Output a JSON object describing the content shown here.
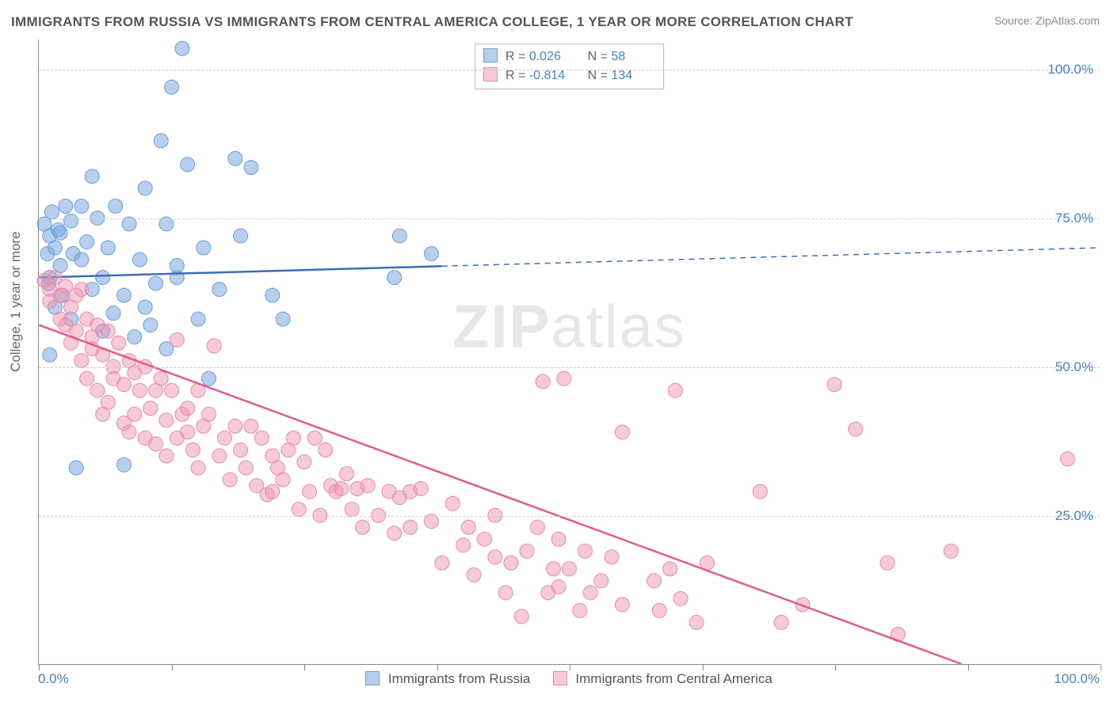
{
  "title": "IMMIGRANTS FROM RUSSIA VS IMMIGRANTS FROM CENTRAL AMERICA COLLEGE, 1 YEAR OR MORE CORRELATION CHART",
  "source": "Source: ZipAtlas.com",
  "y_label": "College, 1 year or more",
  "watermark_a": "ZIP",
  "watermark_b": "atlas",
  "chart": {
    "type": "scatter",
    "xlim": [
      0,
      100
    ],
    "ylim": [
      0,
      105
    ],
    "y_ticks": [
      25,
      50,
      75,
      100
    ],
    "y_tick_labels": [
      "25.0%",
      "50.0%",
      "75.0%",
      "100.0%"
    ],
    "x_ticks": [
      0,
      12.5,
      25,
      37.5,
      50,
      62.5,
      75,
      87.5,
      100
    ],
    "x_left_label": "0.0%",
    "x_right_label": "100.0%",
    "grid_color": "#cccccc",
    "axis_color": "#888888",
    "background_color": "#ffffff",
    "series": [
      {
        "name": "Immigrants from Russia",
        "color_fill": "rgba(123,168,222,0.55)",
        "color_stroke": "#6b9ed9",
        "line_color": "#3b6fb5",
        "marker_radius": 9,
        "R_label": "R = ",
        "R": "0.026",
        "N_label": "N = ",
        "N": "58",
        "trend": {
          "x1": 0,
          "y1": 65,
          "x2": 100,
          "y2": 70,
          "solid_until_x": 38
        },
        "points": [
          [
            0.5,
            74
          ],
          [
            0.8,
            69
          ],
          [
            0.9,
            64
          ],
          [
            1,
            72
          ],
          [
            1,
            65
          ],
          [
            1.2,
            76
          ],
          [
            1.5,
            70
          ],
          [
            1.8,
            73
          ],
          [
            2,
            72.5
          ],
          [
            1,
            52
          ],
          [
            1.5,
            60
          ],
          [
            2,
            67
          ],
          [
            2.5,
            77
          ],
          [
            2.2,
            62
          ],
          [
            3,
            74.5
          ],
          [
            3,
            58
          ],
          [
            3.2,
            69
          ],
          [
            3.5,
            33
          ],
          [
            4,
            68
          ],
          [
            4,
            77
          ],
          [
            4.5,
            71
          ],
          [
            5,
            82
          ],
          [
            5,
            63
          ],
          [
            5.5,
            75
          ],
          [
            6,
            56
          ],
          [
            6,
            65
          ],
          [
            6.5,
            70
          ],
          [
            7,
            59
          ],
          [
            7.2,
            77
          ],
          [
            8,
            62
          ],
          [
            8,
            33.5
          ],
          [
            8.5,
            74
          ],
          [
            9,
            55
          ],
          [
            9.5,
            68
          ],
          [
            10,
            80
          ],
          [
            10,
            60
          ],
          [
            10.5,
            57
          ],
          [
            11,
            64
          ],
          [
            11.5,
            88
          ],
          [
            12,
            53
          ],
          [
            12,
            74
          ],
          [
            12.5,
            97
          ],
          [
            13,
            65
          ],
          [
            13,
            67
          ],
          [
            13.5,
            103.5
          ],
          [
            14,
            84
          ],
          [
            15,
            58
          ],
          [
            15.5,
            70
          ],
          [
            16,
            48
          ],
          [
            17,
            63
          ],
          [
            18.5,
            85
          ],
          [
            19,
            72
          ],
          [
            20,
            83.5
          ],
          [
            22,
            62
          ],
          [
            23,
            58
          ],
          [
            33.5,
            65
          ],
          [
            34,
            72
          ],
          [
            37,
            69
          ]
        ]
      },
      {
        "name": "Immigrants from Central America",
        "color_fill": "rgba(240,150,175,0.5)",
        "color_stroke": "#e98aa8",
        "line_color": "#e05c86",
        "marker_radius": 9,
        "R_label": "R = ",
        "R": "-0.814",
        "N_label": "N = ",
        "N": "134",
        "trend": {
          "x1": 0,
          "y1": 57,
          "x2": 87,
          "y2": 0,
          "solid_until_x": 87
        },
        "points": [
          [
            0.5,
            64.5
          ],
          [
            1,
            63
          ],
          [
            1,
            61
          ],
          [
            1.5,
            65
          ],
          [
            2,
            62
          ],
          [
            2,
            58
          ],
          [
            2.5,
            63.5
          ],
          [
            2.5,
            57
          ],
          [
            3,
            60
          ],
          [
            3,
            54
          ],
          [
            3.5,
            62
          ],
          [
            3.5,
            56
          ],
          [
            4,
            63
          ],
          [
            4,
            51
          ],
          [
            4.5,
            58
          ],
          [
            4.5,
            48
          ],
          [
            5,
            55
          ],
          [
            5,
            53
          ],
          [
            5.5,
            57
          ],
          [
            5.5,
            46
          ],
          [
            6,
            52
          ],
          [
            6,
            42
          ],
          [
            6.5,
            56
          ],
          [
            6.5,
            44
          ],
          [
            7,
            50
          ],
          [
            7,
            48
          ],
          [
            7.5,
            54
          ],
          [
            8,
            40.5
          ],
          [
            8,
            47
          ],
          [
            8.5,
            51
          ],
          [
            8.5,
            39
          ],
          [
            9,
            49
          ],
          [
            9,
            42
          ],
          [
            9.5,
            46
          ],
          [
            10,
            38
          ],
          [
            10,
            50
          ],
          [
            10.5,
            43
          ],
          [
            11,
            46
          ],
          [
            11,
            37
          ],
          [
            11.5,
            48
          ],
          [
            12,
            41
          ],
          [
            12,
            35
          ],
          [
            12.5,
            46
          ],
          [
            13,
            54.5
          ],
          [
            13,
            38
          ],
          [
            13.5,
            42
          ],
          [
            14,
            39
          ],
          [
            14,
            43
          ],
          [
            14.5,
            36
          ],
          [
            15,
            46
          ],
          [
            15,
            33
          ],
          [
            15.5,
            40
          ],
          [
            16,
            42
          ],
          [
            16.5,
            53.5
          ],
          [
            17,
            35
          ],
          [
            17.5,
            38
          ],
          [
            18,
            31
          ],
          [
            18.5,
            40
          ],
          [
            19,
            36
          ],
          [
            19.5,
            33
          ],
          [
            20,
            40
          ],
          [
            20.5,
            30
          ],
          [
            21,
            38
          ],
          [
            21.5,
            28.5
          ],
          [
            22,
            35
          ],
          [
            22,
            29
          ],
          [
            22.5,
            33
          ],
          [
            23,
            31
          ],
          [
            23.5,
            36
          ],
          [
            24,
            38
          ],
          [
            24.5,
            26
          ],
          [
            25,
            34
          ],
          [
            25.5,
            29
          ],
          [
            26,
            38
          ],
          [
            26.5,
            25
          ],
          [
            27,
            36
          ],
          [
            27.5,
            30
          ],
          [
            28,
            29
          ],
          [
            28.5,
            29.5
          ],
          [
            29,
            32
          ],
          [
            29.5,
            26
          ],
          [
            30,
            29.5
          ],
          [
            30.5,
            23
          ],
          [
            31,
            30
          ],
          [
            32,
            25
          ],
          [
            33,
            29
          ],
          [
            33.5,
            22
          ],
          [
            34,
            28
          ],
          [
            35,
            23
          ],
          [
            35,
            29
          ],
          [
            36,
            29.5
          ],
          [
            37,
            24
          ],
          [
            38,
            17
          ],
          [
            39,
            27
          ],
          [
            40,
            20
          ],
          [
            40.5,
            23
          ],
          [
            41,
            15
          ],
          [
            42,
            21
          ],
          [
            43,
            18
          ],
          [
            43,
            25
          ],
          [
            44,
            12
          ],
          [
            44.5,
            17
          ],
          [
            45.5,
            8
          ],
          [
            46,
            19
          ],
          [
            47,
            23
          ],
          [
            47.5,
            47.5
          ],
          [
            48,
            12
          ],
          [
            48.5,
            16
          ],
          [
            49,
            21
          ],
          [
            49,
            13
          ],
          [
            49.5,
            48
          ],
          [
            50,
            16
          ],
          [
            51,
            9
          ],
          [
            51.5,
            19
          ],
          [
            52,
            12
          ],
          [
            53,
            14
          ],
          [
            54,
            18
          ],
          [
            55,
            10
          ],
          [
            55,
            39
          ],
          [
            58,
            14
          ],
          [
            58.5,
            9
          ],
          [
            59.5,
            16
          ],
          [
            60,
            46
          ],
          [
            60.5,
            11
          ],
          [
            62,
            7
          ],
          [
            63,
            17
          ],
          [
            68,
            29
          ],
          [
            70,
            7
          ],
          [
            72,
            10
          ],
          [
            75,
            47
          ],
          [
            77,
            39.5
          ],
          [
            80,
            17
          ],
          [
            81,
            5
          ],
          [
            86,
            19
          ],
          [
            97,
            34.5
          ]
        ]
      }
    ]
  },
  "bottom_legend": {
    "items": [
      {
        "label": "Immigrants from Russia"
      },
      {
        "label": "Immigrants from Central America"
      }
    ]
  }
}
